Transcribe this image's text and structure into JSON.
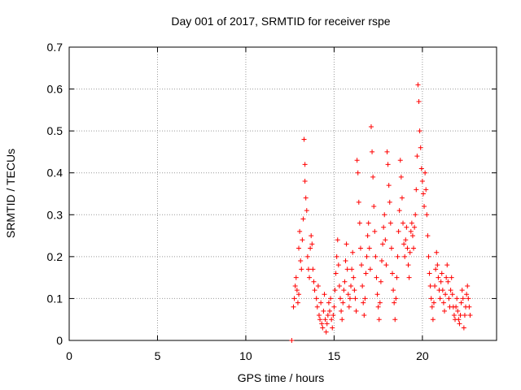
{
  "chart_data": {
    "type": "scatter",
    "title": "Day 001 of 2017, SRMTID for receiver rspe",
    "xlabel": "GPS time / hours",
    "ylabel": "SRMTID / TECUs",
    "xlim": [
      0,
      24.2
    ],
    "ylim": [
      0,
      0.7
    ],
    "xticks": [
      0,
      5,
      10,
      15,
      20
    ],
    "yticks": [
      0,
      0.1,
      0.2,
      0.3,
      0.4,
      0.5,
      0.6,
      0.7
    ],
    "x_tick_labels": [
      "0",
      "5",
      "10",
      "15",
      "20"
    ],
    "y_tick_labels": [
      "0",
      "0.1",
      "0.2",
      "0.3",
      "0.4",
      "0.5",
      "0.6",
      "0.7"
    ],
    "grid": true,
    "marker": "+",
    "color": "#ff0000",
    "points": [
      [
        12.6,
        0.0
      ],
      [
        12.7,
        0.08
      ],
      [
        12.75,
        0.1
      ],
      [
        12.8,
        0.13
      ],
      [
        12.85,
        0.15
      ],
      [
        12.9,
        0.12
      ],
      [
        12.95,
        0.09
      ],
      [
        13.0,
        0.11
      ],
      [
        13.0,
        0.22
      ],
      [
        13.05,
        0.26
      ],
      [
        13.1,
        0.19
      ],
      [
        13.15,
        0.17
      ],
      [
        13.2,
        0.24
      ],
      [
        13.25,
        0.29
      ],
      [
        13.3,
        0.48
      ],
      [
        13.35,
        0.42
      ],
      [
        13.35,
        0.38
      ],
      [
        13.4,
        0.34
      ],
      [
        13.45,
        0.31
      ],
      [
        13.5,
        0.2
      ],
      [
        13.55,
        0.17
      ],
      [
        13.6,
        0.15
      ],
      [
        13.65,
        0.22
      ],
      [
        13.7,
        0.25
      ],
      [
        13.75,
        0.23
      ],
      [
        13.8,
        0.17
      ],
      [
        13.85,
        0.14
      ],
      [
        13.9,
        0.12
      ],
      [
        14.0,
        0.1
      ],
      [
        14.05,
        0.08
      ],
      [
        14.1,
        0.13
      ],
      [
        14.15,
        0.06
      ],
      [
        14.2,
        0.05
      ],
      [
        14.25,
        0.09
      ],
      [
        14.3,
        0.04
      ],
      [
        14.35,
        0.03
      ],
      [
        14.4,
        0.07
      ],
      [
        14.45,
        0.11
      ],
      [
        14.5,
        0.05
      ],
      [
        14.55,
        0.02
      ],
      [
        14.6,
        0.04
      ],
      [
        14.65,
        0.06
      ],
      [
        14.7,
        0.09
      ],
      [
        14.75,
        0.07
      ],
      [
        14.8,
        0.1
      ],
      [
        14.85,
        0.05
      ],
      [
        14.9,
        0.03
      ],
      [
        14.95,
        0.06
      ],
      [
        15.0,
        0.08
      ],
      [
        15.05,
        0.12
      ],
      [
        15.1,
        0.16
      ],
      [
        15.15,
        0.2
      ],
      [
        15.2,
        0.24
      ],
      [
        15.25,
        0.18
      ],
      [
        15.3,
        0.13
      ],
      [
        15.35,
        0.1
      ],
      [
        15.4,
        0.07
      ],
      [
        15.45,
        0.05
      ],
      [
        15.5,
        0.09
      ],
      [
        15.55,
        0.12
      ],
      [
        15.6,
        0.14
      ],
      [
        15.65,
        0.19
      ],
      [
        15.7,
        0.23
      ],
      [
        15.75,
        0.17
      ],
      [
        15.8,
        0.11
      ],
      [
        15.85,
        0.08
      ],
      [
        15.9,
        0.1
      ],
      [
        15.95,
        0.13
      ],
      [
        16.0,
        0.17
      ],
      [
        16.05,
        0.21
      ],
      [
        16.1,
        0.15
      ],
      [
        16.15,
        0.12
      ],
      [
        16.2,
        0.1
      ],
      [
        16.25,
        0.07
      ],
      [
        16.3,
        0.43
      ],
      [
        16.35,
        0.4
      ],
      [
        16.4,
        0.33
      ],
      [
        16.45,
        0.28
      ],
      [
        16.5,
        0.22
      ],
      [
        16.55,
        0.18
      ],
      [
        16.6,
        0.13
      ],
      [
        16.65,
        0.09
      ],
      [
        16.7,
        0.06
      ],
      [
        16.75,
        0.1
      ],
      [
        16.8,
        0.16
      ],
      [
        16.85,
        0.2
      ],
      [
        16.9,
        0.25
      ],
      [
        16.95,
        0.28
      ],
      [
        17.0,
        0.22
      ],
      [
        17.05,
        0.17
      ],
      [
        17.1,
        0.51
      ],
      [
        17.15,
        0.45
      ],
      [
        17.2,
        0.39
      ],
      [
        17.25,
        0.32
      ],
      [
        17.3,
        0.26
      ],
      [
        17.35,
        0.2
      ],
      [
        17.4,
        0.15
      ],
      [
        17.45,
        0.11
      ],
      [
        17.5,
        0.08
      ],
      [
        17.55,
        0.05
      ],
      [
        17.6,
        0.09
      ],
      [
        17.65,
        0.14
      ],
      [
        17.7,
        0.19
      ],
      [
        17.75,
        0.23
      ],
      [
        17.8,
        0.27
      ],
      [
        17.85,
        0.3
      ],
      [
        17.9,
        0.24
      ],
      [
        17.95,
        0.18
      ],
      [
        18.0,
        0.45
      ],
      [
        18.05,
        0.42
      ],
      [
        18.1,
        0.37
      ],
      [
        18.15,
        0.33
      ],
      [
        18.2,
        0.28
      ],
      [
        18.25,
        0.22
      ],
      [
        18.3,
        0.16
      ],
      [
        18.35,
        0.12
      ],
      [
        18.4,
        0.09
      ],
      [
        18.45,
        0.05
      ],
      [
        18.5,
        0.1
      ],
      [
        18.55,
        0.15
      ],
      [
        18.6,
        0.2
      ],
      [
        18.65,
        0.26
      ],
      [
        18.7,
        0.31
      ],
      [
        18.75,
        0.43
      ],
      [
        18.8,
        0.39
      ],
      [
        18.85,
        0.34
      ],
      [
        18.9,
        0.28
      ],
      [
        18.95,
        0.23
      ],
      [
        19.0,
        0.2
      ],
      [
        19.05,
        0.24
      ],
      [
        19.1,
        0.27
      ],
      [
        19.15,
        0.22
      ],
      [
        19.2,
        0.18
      ],
      [
        19.25,
        0.15
      ],
      [
        19.3,
        0.21
      ],
      [
        19.35,
        0.26
      ],
      [
        19.4,
        0.28
      ],
      [
        19.45,
        0.25
      ],
      [
        19.5,
        0.22
      ],
      [
        19.55,
        0.27
      ],
      [
        19.6,
        0.3
      ],
      [
        19.65,
        0.36
      ],
      [
        19.7,
        0.44
      ],
      [
        19.75,
        0.61
      ],
      [
        19.8,
        0.57
      ],
      [
        19.85,
        0.5
      ],
      [
        19.9,
        0.46
      ],
      [
        19.95,
        0.41
      ],
      [
        20.0,
        0.38
      ],
      [
        20.05,
        0.35
      ],
      [
        20.1,
        0.32
      ],
      [
        20.15,
        0.4
      ],
      [
        20.2,
        0.36
      ],
      [
        20.25,
        0.3
      ],
      [
        20.3,
        0.25
      ],
      [
        20.35,
        0.2
      ],
      [
        20.4,
        0.16
      ],
      [
        20.45,
        0.13
      ],
      [
        20.5,
        0.1
      ],
      [
        20.55,
        0.08
      ],
      [
        20.6,
        0.05
      ],
      [
        20.65,
        0.09
      ],
      [
        20.7,
        0.13
      ],
      [
        20.75,
        0.17
      ],
      [
        20.8,
        0.21
      ],
      [
        20.85,
        0.18
      ],
      [
        20.9,
        0.15
      ],
      [
        20.95,
        0.12
      ],
      [
        21.0,
        0.1
      ],
      [
        21.05,
        0.14
      ],
      [
        21.1,
        0.16
      ],
      [
        21.15,
        0.12
      ],
      [
        21.2,
        0.09
      ],
      [
        21.25,
        0.07
      ],
      [
        21.3,
        0.11
      ],
      [
        21.35,
        0.15
      ],
      [
        21.4,
        0.18
      ],
      [
        21.45,
        0.14
      ],
      [
        21.5,
        0.1
      ],
      [
        21.55,
        0.08
      ],
      [
        21.6,
        0.12
      ],
      [
        21.65,
        0.15
      ],
      [
        21.7,
        0.11
      ],
      [
        21.75,
        0.08
      ],
      [
        21.8,
        0.06
      ],
      [
        21.85,
        0.05
      ],
      [
        21.9,
        0.08
      ],
      [
        21.95,
        0.1
      ],
      [
        22.0,
        0.07
      ],
      [
        22.05,
        0.05
      ],
      [
        22.1,
        0.04
      ],
      [
        22.15,
        0.06
      ],
      [
        22.2,
        0.09
      ],
      [
        22.25,
        0.12
      ],
      [
        22.3,
        0.1
      ],
      [
        22.35,
        0.03
      ],
      [
        22.4,
        0.06
      ],
      [
        22.45,
        0.08
      ],
      [
        22.5,
        0.11
      ],
      [
        22.55,
        0.13
      ],
      [
        22.6,
        0.1
      ],
      [
        22.65,
        0.08
      ],
      [
        22.7,
        0.06
      ]
    ]
  }
}
